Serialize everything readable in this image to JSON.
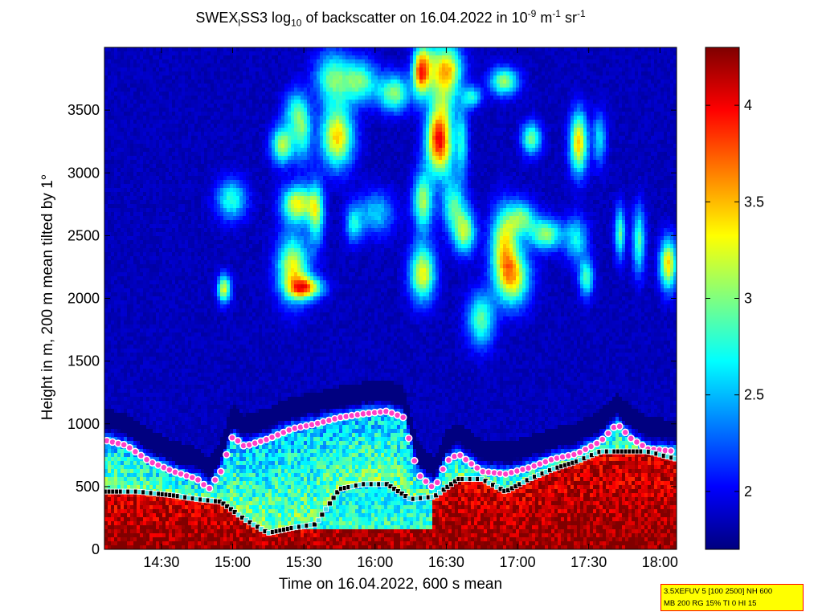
{
  "chart_data": {
    "type": "heatmap",
    "title": {
      "prefix": "SWEX",
      "sub1": "l",
      "mid": "SS3 log",
      "sub2": "10",
      "mid2": " of backscatter on 16.04.2022 in 10",
      "sup1": "-9",
      "mid3": " m",
      "sup2": "-1",
      "mid4": " sr",
      "sup3": "-1"
    },
    "xlabel": "Time on 16.04.2022, 600 s mean",
    "ylabel": "Height in m, 200 m mean tilted by 1°",
    "x_unit": "time (HH:MM)",
    "xlim": [
      "14:06",
      "18:07"
    ],
    "ylim": [
      0,
      4000
    ],
    "x_ticks": [
      "14:30",
      "15:00",
      "15:30",
      "16:00",
      "16:30",
      "17:00",
      "17:30",
      "18:00"
    ],
    "y_ticks": [
      0,
      500,
      1000,
      1500,
      2000,
      2500,
      3000,
      3500
    ],
    "colorbar": {
      "range": [
        1.7,
        4.3
      ],
      "ticks": [
        2,
        2.5,
        3,
        3.5,
        4
      ],
      "colormap": "jet"
    },
    "boundary_layer_height_m": [
      {
        "t": "14:06",
        "h": 870
      },
      {
        "t": "14:15",
        "h": 830
      },
      {
        "t": "14:25",
        "h": 700
      },
      {
        "t": "14:35",
        "h": 620
      },
      {
        "t": "14:45",
        "h": 560
      },
      {
        "t": "14:50",
        "h": 480
      },
      {
        "t": "14:55",
        "h": 620
      },
      {
        "t": "15:00",
        "h": 900
      },
      {
        "t": "15:05",
        "h": 820
      },
      {
        "t": "15:15",
        "h": 880
      },
      {
        "t": "15:25",
        "h": 960
      },
      {
        "t": "15:35",
        "h": 1000
      },
      {
        "t": "15:45",
        "h": 1050
      },
      {
        "t": "15:55",
        "h": 1080
      },
      {
        "t": "16:05",
        "h": 1100
      },
      {
        "t": "16:12",
        "h": 1050
      },
      {
        "t": "16:18",
        "h": 600
      },
      {
        "t": "16:25",
        "h": 480
      },
      {
        "t": "16:30",
        "h": 700
      },
      {
        "t": "16:35",
        "h": 760
      },
      {
        "t": "16:45",
        "h": 620
      },
      {
        "t": "16:55",
        "h": 600
      },
      {
        "t": "17:05",
        "h": 650
      },
      {
        "t": "17:15",
        "h": 720
      },
      {
        "t": "17:25",
        "h": 760
      },
      {
        "t": "17:35",
        "h": 860
      },
      {
        "t": "17:42",
        "h": 1000
      },
      {
        "t": "17:48",
        "h": 880
      },
      {
        "t": "17:55",
        "h": 800
      },
      {
        "t": "18:07",
        "h": 780
      }
    ],
    "aerosol_layer_top_m": [
      {
        "t": "14:06",
        "h": 460
      },
      {
        "t": "14:20",
        "h": 460
      },
      {
        "t": "14:35",
        "h": 430
      },
      {
        "t": "14:45",
        "h": 400
      },
      {
        "t": "14:55",
        "h": 380
      },
      {
        "t": "15:05",
        "h": 240
      },
      {
        "t": "15:15",
        "h": 130
      },
      {
        "t": "15:25",
        "h": 170
      },
      {
        "t": "15:35",
        "h": 200
      },
      {
        "t": "15:45",
        "h": 480
      },
      {
        "t": "15:55",
        "h": 520
      },
      {
        "t": "16:05",
        "h": 520
      },
      {
        "t": "16:15",
        "h": 400
      },
      {
        "t": "16:25",
        "h": 420
      },
      {
        "t": "16:35",
        "h": 560
      },
      {
        "t": "16:45",
        "h": 560
      },
      {
        "t": "16:55",
        "h": 460
      },
      {
        "t": "17:05",
        "h": 560
      },
      {
        "t": "17:15",
        "h": 640
      },
      {
        "t": "17:25",
        "h": 700
      },
      {
        "t": "17:35",
        "h": 780
      },
      {
        "t": "17:45",
        "h": 780
      },
      {
        "t": "17:55",
        "h": 780
      },
      {
        "t": "18:07",
        "h": 720
      }
    ],
    "settings_text": [
      "3.5XEFUV 5 [100 2500] NH 600",
      "MB 200 RG 15% TI 0 HI 15"
    ]
  }
}
